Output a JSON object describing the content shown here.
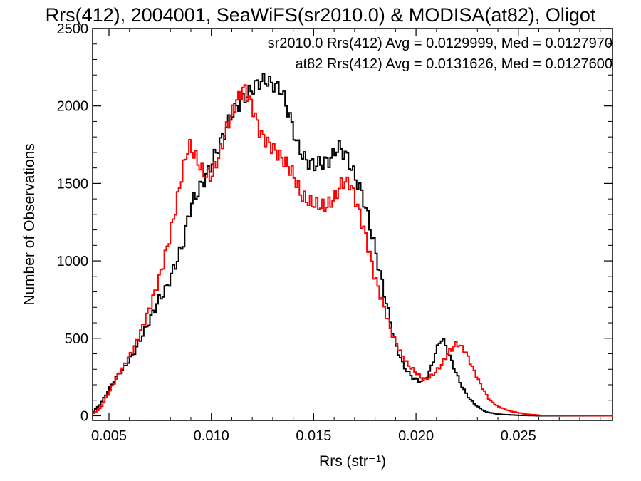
{
  "chart_data": {
    "type": "line",
    "subtype": "step-histogram",
    "title": "Rrs(412), 2004001, SeaWiFS(sr2010.0) & MODISA(at82), Oligot",
    "xlabel": "Rrs (str⁻¹)",
    "ylabel": "Number of Observations",
    "xlim": [
      0.0042,
      0.0296
    ],
    "ylim": [
      -30,
      2500
    ],
    "xticks": [
      0.005,
      0.01,
      0.015,
      0.02,
      0.025
    ],
    "xtick_labels": [
      "0.005",
      "0.010",
      "0.015",
      "0.020",
      "0.025"
    ],
    "yticks": [
      0,
      500,
      1000,
      1500,
      2000,
      2500
    ],
    "ytick_labels": [
      "0",
      "500",
      "1000",
      "1500",
      "2000",
      "2500"
    ],
    "grid": false,
    "legend_position": "top-right",
    "series": [
      {
        "name": "sr2010.0 Rrs(412) Avg = 0.0129999, Med = 0.0127970",
        "color": "#000000",
        "points": [
          [
            0.0042,
            20
          ],
          [
            0.0046,
            80
          ],
          [
            0.005,
            170
          ],
          [
            0.0054,
            260
          ],
          [
            0.0058,
            320
          ],
          [
            0.0062,
            400
          ],
          [
            0.0066,
            510
          ],
          [
            0.007,
            620
          ],
          [
            0.0074,
            740
          ],
          [
            0.0078,
            820
          ],
          [
            0.0082,
            960
          ],
          [
            0.0086,
            1100
          ],
          [
            0.009,
            1360
          ],
          [
            0.0094,
            1460
          ],
          [
            0.0098,
            1560
          ],
          [
            0.0102,
            1690
          ],
          [
            0.0106,
            1810
          ],
          [
            0.011,
            1950
          ],
          [
            0.0114,
            2020
          ],
          [
            0.0118,
            2080
          ],
          [
            0.0122,
            2140
          ],
          [
            0.0126,
            2170
          ],
          [
            0.013,
            2140
          ],
          [
            0.0134,
            2110
          ],
          [
            0.0138,
            1950
          ],
          [
            0.0142,
            1750
          ],
          [
            0.0146,
            1650
          ],
          [
            0.015,
            1620
          ],
          [
            0.0154,
            1630
          ],
          [
            0.0158,
            1650
          ],
          [
            0.0162,
            1740
          ],
          [
            0.0166,
            1680
          ],
          [
            0.017,
            1550
          ],
          [
            0.0174,
            1420
          ],
          [
            0.0178,
            1200
          ],
          [
            0.0182,
            950
          ],
          [
            0.0186,
            700
          ],
          [
            0.019,
            460
          ],
          [
            0.0194,
            320
          ],
          [
            0.0198,
            250
          ],
          [
            0.0202,
            220
          ],
          [
            0.0206,
            260
          ],
          [
            0.021,
            420
          ],
          [
            0.0212,
            500
          ],
          [
            0.0214,
            470
          ],
          [
            0.0218,
            330
          ],
          [
            0.0222,
            200
          ],
          [
            0.0226,
            110
          ],
          [
            0.023,
            60
          ],
          [
            0.0234,
            25
          ],
          [
            0.024,
            10
          ],
          [
            0.025,
            3
          ],
          [
            0.026,
            0
          ],
          [
            0.0296,
            0
          ]
        ]
      },
      {
        "name": "at82 Rrs(412) Avg = 0.0131626, Med = 0.0127600",
        "color": "#ff0000",
        "points": [
          [
            0.0042,
            10
          ],
          [
            0.0046,
            50
          ],
          [
            0.005,
            150
          ],
          [
            0.0054,
            250
          ],
          [
            0.0058,
            340
          ],
          [
            0.0062,
            430
          ],
          [
            0.0066,
            560
          ],
          [
            0.007,
            700
          ],
          [
            0.0074,
            860
          ],
          [
            0.0078,
            1060
          ],
          [
            0.0082,
            1300
          ],
          [
            0.0086,
            1580
          ],
          [
            0.0089,
            1750
          ],
          [
            0.0092,
            1680
          ],
          [
            0.0096,
            1570
          ],
          [
            0.01,
            1540
          ],
          [
            0.0104,
            1690
          ],
          [
            0.0108,
            1880
          ],
          [
            0.0112,
            2020
          ],
          [
            0.0116,
            2120
          ],
          [
            0.012,
            2000
          ],
          [
            0.0124,
            1820
          ],
          [
            0.0128,
            1760
          ],
          [
            0.0132,
            1700
          ],
          [
            0.0136,
            1640
          ],
          [
            0.014,
            1560
          ],
          [
            0.0144,
            1420
          ],
          [
            0.0148,
            1380
          ],
          [
            0.0152,
            1360
          ],
          [
            0.0156,
            1350
          ],
          [
            0.016,
            1400
          ],
          [
            0.0164,
            1510
          ],
          [
            0.0168,
            1500
          ],
          [
            0.0172,
            1330
          ],
          [
            0.0176,
            1130
          ],
          [
            0.018,
            890
          ],
          [
            0.0184,
            720
          ],
          [
            0.0188,
            540
          ],
          [
            0.0192,
            420
          ],
          [
            0.0196,
            330
          ],
          [
            0.02,
            280
          ],
          [
            0.0204,
            230
          ],
          [
            0.0208,
            260
          ],
          [
            0.0212,
            320
          ],
          [
            0.0216,
            410
          ],
          [
            0.022,
            470
          ],
          [
            0.0224,
            420
          ],
          [
            0.0228,
            300
          ],
          [
            0.0232,
            190
          ],
          [
            0.0236,
            100
          ],
          [
            0.024,
            60
          ],
          [
            0.0246,
            30
          ],
          [
            0.0254,
            10
          ],
          [
            0.0262,
            2
          ],
          [
            0.0296,
            0
          ]
        ]
      }
    ]
  }
}
